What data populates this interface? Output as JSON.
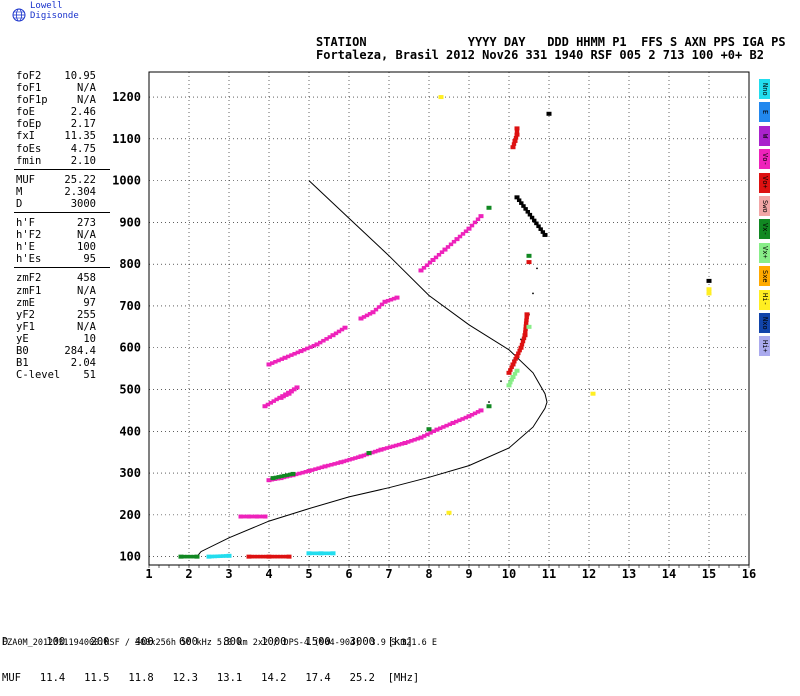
{
  "brand": {
    "text": "Lowell Digisonde",
    "logo_icon": "globe-icon"
  },
  "header": {
    "line1": "STATION              YYYY DAY   DDD HHMM P1  FFS S AXN PPS IGA PS",
    "line2": "Fortaleza, Brasil 2012 Nov26 331 1940 RSF 005 2 713 100 +0+ B2"
  },
  "params_groups": [
    [
      {
        "label": "foF2",
        "value": "10.95"
      },
      {
        "label": "foF1",
        "value": "N/A"
      },
      {
        "label": "foF1p",
        "value": "N/A"
      },
      {
        "label": "foE",
        "value": "2.46"
      },
      {
        "label": "foEp",
        "value": "2.17"
      },
      {
        "label": "fxI",
        "value": "11.35"
      },
      {
        "label": "foEs",
        "value": "4.75"
      },
      {
        "label": "fmin",
        "value": "2.10"
      }
    ],
    [
      {
        "label": "MUF",
        "value": "25.22"
      },
      {
        "label": "M",
        "value": "2.304"
      },
      {
        "label": "D",
        "value": "3000"
      }
    ],
    [
      {
        "label": "h'F",
        "value": "273"
      },
      {
        "label": "h'F2",
        "value": "N/A"
      },
      {
        "label": "h'E",
        "value": "100"
      },
      {
        "label": "h'Es",
        "value": "95"
      }
    ],
    [
      {
        "label": "zmF2",
        "value": "458"
      },
      {
        "label": "zmF1",
        "value": "N/A"
      },
      {
        "label": "zmE",
        "value": "97"
      },
      {
        "label": "yF2",
        "value": "255"
      },
      {
        "label": "yF1",
        "value": "N/A"
      },
      {
        "label": "yE",
        "value": "10"
      },
      {
        "label": "B0",
        "value": "284.4"
      },
      {
        "label": "B1",
        "value": "2.04"
      },
      {
        "label": "C-level",
        "value": "51"
      }
    ]
  ],
  "legend": [
    {
      "label": "Nno",
      "color": "#22ddee"
    },
    {
      "label": "E",
      "color": "#2288ee"
    },
    {
      "label": "W",
      "color": "#aa22cc"
    },
    {
      "label": "Vo-",
      "color": "#ee22bb"
    },
    {
      "label": "Vo+",
      "color": "#dd1111"
    },
    {
      "label": "Swo",
      "color": "#f2a6a6"
    },
    {
      "label": "Vx-",
      "color": "#118822"
    },
    {
      "label": "Vx+",
      "color": "#88ee88"
    },
    {
      "label": "Sxe",
      "color": "#ffaa00"
    },
    {
      "label": "Hi-",
      "color": "#ffee22"
    },
    {
      "label": "Nxo",
      "color": "#1144aa"
    },
    {
      "label": "Hi+",
      "color": "#aaaaee"
    }
  ],
  "muf_table": {
    "d_label": "D",
    "d_values": [
      "100",
      "200",
      "400",
      "600",
      "800",
      "1000",
      "1500",
      "3000"
    ],
    "d_unit": "[km]",
    "muf_label": "MUF",
    "muf_values": [
      "11.4",
      "11.5",
      "11.8",
      "12.3",
      "13.1",
      "14.2",
      "17.4",
      "25.2"
    ],
    "muf_unit": "[MHz]"
  },
  "footer": "FZA0M_2012331194000.RSF / 300x256h 50 kHz 5.0 km 2x2 / DPS-4 (904-904)  3.9 S 321.6 E",
  "chart_data": {
    "type": "scatter",
    "xlim": [
      1,
      16
    ],
    "ylim": [
      80,
      1260
    ],
    "xticks": [
      1,
      2,
      3,
      4,
      5,
      6,
      7,
      8,
      9,
      10,
      11,
      12,
      13,
      14,
      15,
      16
    ],
    "yticks": [
      100,
      200,
      300,
      400,
      500,
      600,
      700,
      800,
      900,
      1000,
      1100,
      1200
    ],
    "grid": true,
    "series": [
      {
        "color": "#ee22bb",
        "points": [
          [
            3.3,
            196
          ],
          [
            3.5,
            196
          ],
          [
            3.7,
            196
          ],
          [
            3.9,
            196
          ]
        ]
      },
      {
        "color": "#ee22bb",
        "points": [
          [
            4.0,
            283
          ],
          [
            4.3,
            288
          ],
          [
            4.6,
            295
          ],
          [
            5.0,
            305
          ],
          [
            5.4,
            316
          ],
          [
            5.8,
            326
          ],
          [
            6.3,
            340
          ],
          [
            6.8,
            356
          ],
          [
            7.4,
            372
          ],
          [
            7.8,
            385
          ],
          [
            8.2,
            404
          ],
          [
            8.6,
            420
          ],
          [
            9.0,
            436
          ],
          [
            9.3,
            450
          ]
        ]
      },
      {
        "color": "#ee22bb",
        "points": [
          [
            4.0,
            560
          ],
          [
            4.4,
            576
          ],
          [
            4.8,
            592
          ],
          [
            5.2,
            608
          ],
          [
            5.6,
            630
          ],
          [
            5.9,
            648
          ]
        ]
      },
      {
        "color": "#ee22bb",
        "points": [
          [
            6.3,
            670
          ],
          [
            6.6,
            685
          ],
          [
            6.9,
            710
          ],
          [
            7.2,
            720
          ]
        ]
      },
      {
        "color": "#ee22bb",
        "points": [
          [
            7.8,
            785
          ],
          [
            8.1,
            810
          ],
          [
            8.4,
            835
          ],
          [
            8.7,
            860
          ],
          [
            9.0,
            885
          ],
          [
            9.3,
            915
          ]
        ]
      },
      {
        "color": "#ee22bb",
        "points": [
          [
            4.3,
            480
          ],
          [
            4.5,
            490
          ],
          [
            4.7,
            505
          ],
          [
            3.9,
            460
          ]
        ]
      },
      {
        "color": "#dd1111",
        "points": [
          [
            10.0,
            540
          ],
          [
            10.1,
            560
          ],
          [
            10.2,
            580
          ],
          [
            10.3,
            600
          ],
          [
            10.4,
            630
          ],
          [
            10.45,
            680
          ],
          [
            10.5,
            805
          ]
        ]
      },
      {
        "color": "#dd1111",
        "points": [
          [
            10.1,
            1080
          ],
          [
            10.15,
            1095
          ],
          [
            10.2,
            1110
          ],
          [
            10.2,
            1125
          ]
        ]
      },
      {
        "color": "#dd1111",
        "points": [
          [
            3.5,
            100
          ],
          [
            4.0,
            100
          ],
          [
            4.5,
            100
          ]
        ]
      },
      {
        "color": "#22ddee",
        "points": [
          [
            5.0,
            108
          ],
          [
            5.3,
            108
          ],
          [
            5.6,
            108
          ],
          [
            2.5,
            100
          ],
          [
            3.0,
            102
          ]
        ]
      },
      {
        "color": "#118822",
        "points": [
          [
            1.8,
            100
          ],
          [
            2.2,
            100
          ],
          [
            4.1,
            288
          ],
          [
            4.6,
            298
          ],
          [
            6.5,
            348
          ],
          [
            8.0,
            405
          ],
          [
            9.5,
            460
          ],
          [
            9.5,
            935
          ],
          [
            10.5,
            820
          ]
        ]
      },
      {
        "color": "#88ee88",
        "points": [
          [
            10.0,
            510
          ],
          [
            10.1,
            530
          ],
          [
            10.2,
            545
          ],
          [
            10.5,
            650
          ]
        ]
      },
      {
        "color": "#ffee22",
        "points": [
          [
            15.0,
            740
          ],
          [
            15.0,
            730
          ],
          [
            12.1,
            490
          ],
          [
            8.3,
            1200
          ],
          [
            8.5,
            205
          ]
        ]
      },
      {
        "color": "#000000",
        "points": [
          [
            15.0,
            760
          ],
          [
            10.2,
            960
          ],
          [
            10.9,
            870
          ],
          [
            11.0,
            1160
          ]
        ]
      }
    ],
    "profile": [
      [
        2.2,
        100
      ],
      [
        2.3,
        112
      ],
      [
        3.0,
        145
      ],
      [
        4.0,
        185
      ],
      [
        5.0,
        215
      ],
      [
        6.0,
        243
      ],
      [
        7.0,
        265
      ],
      [
        8.0,
        290
      ],
      [
        9.0,
        318
      ],
      [
        10.0,
        360
      ],
      [
        10.6,
        410
      ],
      [
        10.9,
        455
      ],
      [
        10.95,
        470
      ],
      [
        10.9,
        490
      ],
      [
        10.6,
        540
      ],
      [
        10.0,
        595
      ],
      [
        9.0,
        655
      ],
      [
        8.0,
        725
      ],
      [
        7.0,
        820
      ],
      [
        6.0,
        910
      ],
      [
        5.0,
        1000
      ]
    ],
    "trace_x": [
      [
        9.5,
        470
      ],
      [
        9.8,
        520
      ],
      [
        10.1,
        570
      ],
      [
        10.3,
        620
      ],
      [
        10.5,
        680
      ],
      [
        10.6,
        730
      ],
      [
        10.7,
        790
      ]
    ]
  }
}
